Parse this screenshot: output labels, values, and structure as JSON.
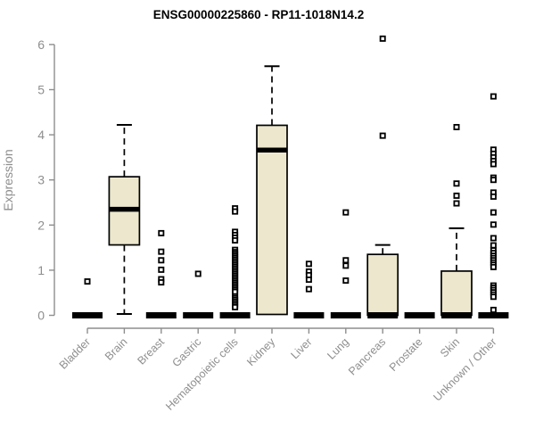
{
  "chart_data": {
    "type": "boxplot",
    "title": "ENSG00000225860 - RP11-1018N14.2",
    "ylabel": "Expression",
    "xlabel": "",
    "ylim": [
      0,
      6
    ],
    "yticks": [
      0,
      1,
      2,
      3,
      4,
      5,
      6
    ],
    "grid": false,
    "legend": "none",
    "categories": [
      "Bladder",
      "Brain",
      "Breast",
      "Gastric",
      "Hematopoietic cells",
      "Kidney",
      "Liver",
      "Lung",
      "Pancreas",
      "Prostate",
      "Skin",
      "Unknown / Other"
    ],
    "boxes": [
      {
        "label": "Bladder",
        "q1": 0,
        "median": 0,
        "q3": 0,
        "whisker_low": 0,
        "whisker_high": 0,
        "outliers": [
          0.75
        ]
      },
      {
        "label": "Brain",
        "q1": 1.56,
        "median": 2.35,
        "q3": 3.07,
        "whisker_low": 0.03,
        "whisker_high": 4.22,
        "outliers": []
      },
      {
        "label": "Breast",
        "q1": 0,
        "median": 0,
        "q3": 0,
        "whisker_low": 0,
        "whisker_high": 0,
        "outliers": [
          1.82,
          1.41,
          1.22,
          1.01,
          0.8,
          0.73
        ]
      },
      {
        "label": "Gastric",
        "q1": 0,
        "median": 0,
        "q3": 0,
        "whisker_low": 0,
        "whisker_high": 0,
        "outliers": [
          0.92
        ]
      },
      {
        "label": "Hematopoietic cells",
        "q1": 0,
        "median": 0,
        "q3": 0,
        "whisker_low": 0,
        "whisker_high": 0,
        "outliers": [
          2.37,
          2.3,
          1.85,
          1.78,
          1.72,
          1.66,
          1.45,
          1.4,
          1.36,
          1.32,
          1.28,
          1.24,
          1.2,
          1.16,
          1.12,
          1.08,
          1.04,
          1.0,
          0.96,
          0.92,
          0.88,
          0.84,
          0.8,
          0.76,
          0.72,
          0.68,
          0.64,
          0.6,
          0.56,
          0.52,
          0.42,
          0.38,
          0.34,
          0.3,
          0.26,
          0.22,
          0.18
        ]
      },
      {
        "label": "Kidney",
        "q1": 0.02,
        "median": 3.66,
        "q3": 4.21,
        "whisker_low": 0.02,
        "whisker_high": 5.52,
        "outliers": []
      },
      {
        "label": "Liver",
        "q1": 0,
        "median": 0,
        "q3": 0,
        "whisker_low": 0,
        "whisker_high": 0,
        "outliers": [
          1.14,
          0.97,
          0.89,
          0.79,
          0.58
        ]
      },
      {
        "label": "Lung",
        "q1": 0,
        "median": 0,
        "q3": 0,
        "whisker_low": 0,
        "whisker_high": 0,
        "outliers": [
          2.28,
          1.22,
          1.1,
          0.77
        ]
      },
      {
        "label": "Pancreas",
        "q1": 0,
        "median": 0,
        "q3": 1.35,
        "whisker_low": 0,
        "whisker_high": 1.56,
        "outliers": [
          6.13,
          3.98
        ]
      },
      {
        "label": "Prostate",
        "q1": 0,
        "median": 0,
        "q3": 0,
        "whisker_low": 0,
        "whisker_high": 0,
        "outliers": []
      },
      {
        "label": "Skin",
        "q1": 0,
        "median": 0,
        "q3": 0.98,
        "whisker_low": 0,
        "whisker_high": 1.93,
        "outliers": [
          4.17,
          2.92,
          2.65,
          2.48
        ]
      },
      {
        "label": "Unknown / Other",
        "q1": 0,
        "median": 0,
        "q3": 0,
        "whisker_low": 0,
        "whisker_high": 0,
        "outliers": [
          4.85,
          3.67,
          3.58,
          3.5,
          3.42,
          3.35,
          3.05,
          3.0,
          2.72,
          2.63,
          2.28,
          2.01,
          1.71,
          1.55,
          1.44,
          1.38,
          1.32,
          1.27,
          1.22,
          1.17,
          1.12,
          1.07,
          0.66,
          0.61,
          0.56,
          0.51,
          0.46,
          0.41,
          0.12
        ]
      }
    ],
    "style": {
      "box_fill": "#ece7cd",
      "box_stroke": "#000000",
      "median_color": "#000000",
      "whisker_color": "#000000",
      "outlier_stroke": "#000000",
      "outlier_fill": "#ffffff",
      "axis_color": "#8e8e8e",
      "tick_label_color": "#8e8e8e",
      "title_color": "#000000",
      "background": "#ffffff"
    }
  }
}
